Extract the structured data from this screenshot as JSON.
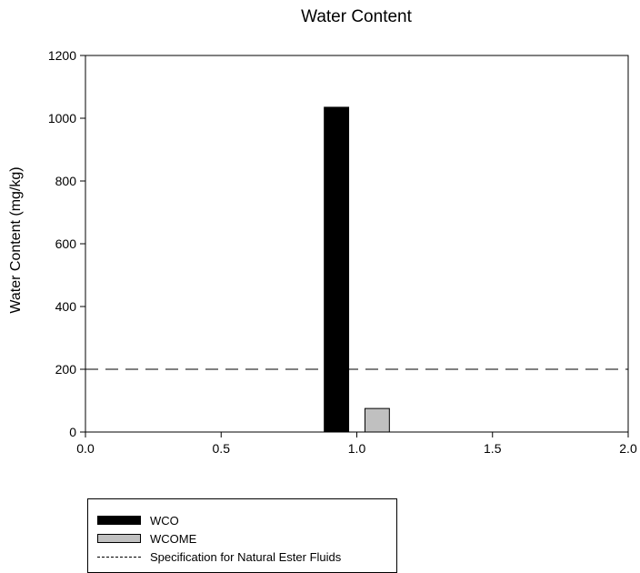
{
  "chart_data": {
    "type": "bar",
    "title": "Water Content",
    "ylabel": "Water Content (mg/kg)",
    "xlabel": "",
    "xlim": [
      0.0,
      2.0
    ],
    "ylim": [
      0,
      1200
    ],
    "xticks": [
      "0.0",
      "0.5",
      "1.0",
      "1.5",
      "2.0"
    ],
    "yticks": [
      "0",
      "200",
      "400",
      "600",
      "800",
      "1000",
      "1200"
    ],
    "series": [
      {
        "name": "WCO",
        "x": 0.925,
        "value": 1035,
        "color": "#000000"
      },
      {
        "name": "WCOME",
        "x": 1.075,
        "value": 75,
        "color": "#c0c0c0"
      }
    ],
    "reference_line": {
      "name": "Specification for Natural Ester Fluids",
      "value": 200,
      "style": "dashed"
    },
    "legend_position": "bottom-left"
  }
}
